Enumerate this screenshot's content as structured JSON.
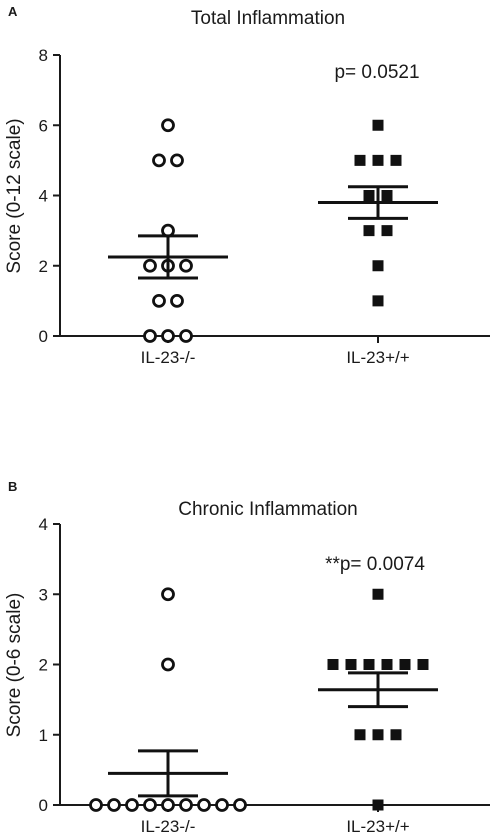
{
  "chart_data": [
    {
      "panel_label": "A",
      "type": "scatter",
      "title": "Total  Inflammation",
      "ylabel": "Score  (0-12 scale)",
      "ylim": [
        0,
        8
      ],
      "yticks": [
        0,
        2,
        4,
        6,
        8
      ],
      "categories": [
        "IL-23-/-",
        "IL-23+/+"
      ],
      "annotation": "p= 0.0521",
      "grid": false,
      "legend": "none",
      "series": [
        {
          "marker": "open-circle",
          "values": [
            6,
            5,
            5,
            3,
            2,
            2,
            2,
            1,
            1,
            0,
            0,
            0
          ],
          "mean": 2.25,
          "sem": 0.6
        },
        {
          "marker": "filled-square",
          "values": [
            6,
            5,
            5,
            5,
            4,
            4,
            3,
            3,
            2,
            1
          ],
          "mean": 3.8,
          "sem": 0.45
        }
      ]
    },
    {
      "panel_label": "B",
      "type": "scatter",
      "title": "Chronic Inflammation",
      "ylabel": "Score  (0-6 scale)",
      "ylim": [
        0,
        4
      ],
      "yticks": [
        0,
        1,
        2,
        3,
        4
      ],
      "categories": [
        "IL-23-/-",
        "IL-23+/+"
      ],
      "annotation": "**p= 0.0074",
      "grid": false,
      "legend": "none",
      "series": [
        {
          "marker": "open-circle",
          "values": [
            3,
            2,
            0,
            0,
            0,
            0,
            0,
            0,
            0,
            0,
            0
          ],
          "mean": 0.45,
          "sem": 0.32
        },
        {
          "marker": "filled-square",
          "values": [
            3,
            2,
            2,
            2,
            2,
            2,
            2,
            1,
            1,
            1,
            0
          ],
          "mean": 1.64,
          "sem": 0.24
        }
      ]
    }
  ]
}
